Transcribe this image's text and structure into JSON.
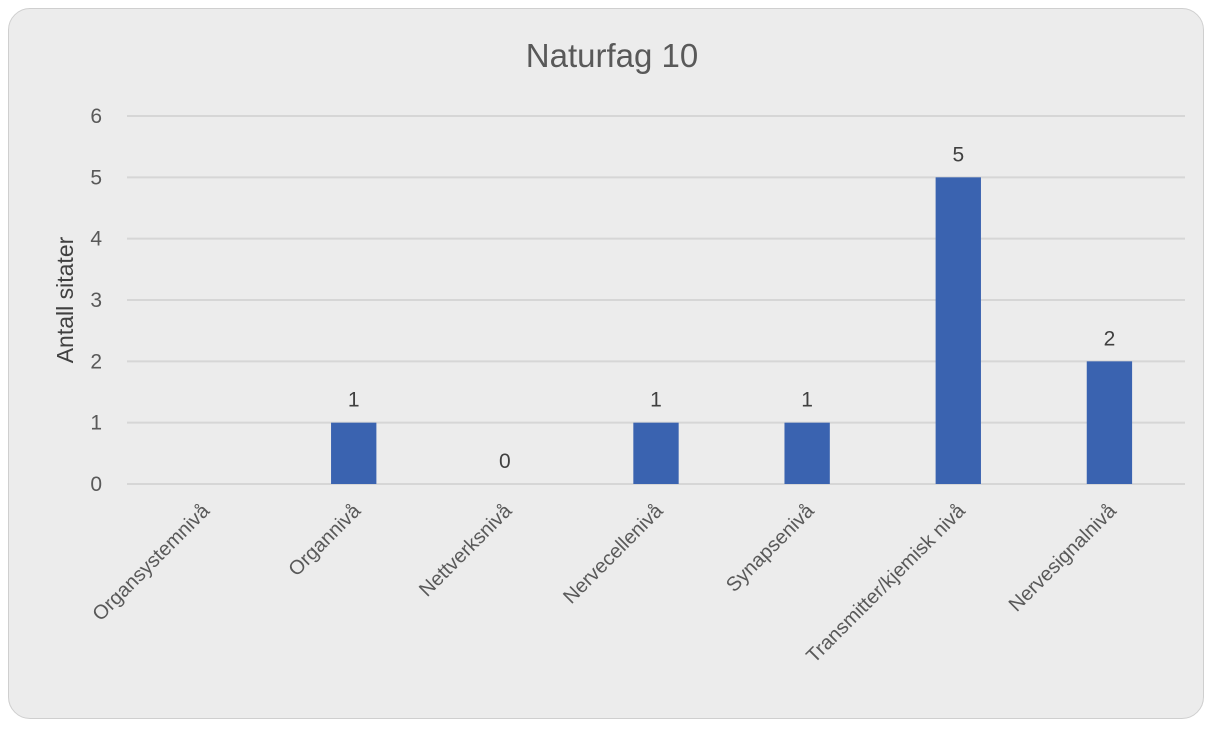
{
  "chart_data": {
    "type": "bar",
    "title": "Naturfag 10",
    "ylabel": "Antall sitater",
    "xlabel": "",
    "categories": [
      "Organsystemnivå",
      "Organnivå",
      "Nettverksnivå",
      "Nervecellenivå",
      "Synapsenivå",
      "Transmitter/kjemisk nivå",
      "Nervesignalnivå"
    ],
    "values": [
      null,
      1,
      0,
      1,
      1,
      5,
      2
    ],
    "data_labels": [
      "",
      "1",
      "0",
      "1",
      "1",
      "5",
      "2"
    ],
    "ylim": [
      0,
      6
    ],
    "yticks": [
      "0",
      "1",
      "2",
      "3",
      "4",
      "5",
      "6"
    ],
    "grid": true,
    "legend": "none",
    "bar_color": "#3a63b0",
    "grid_color": "#d6d6d6"
  }
}
